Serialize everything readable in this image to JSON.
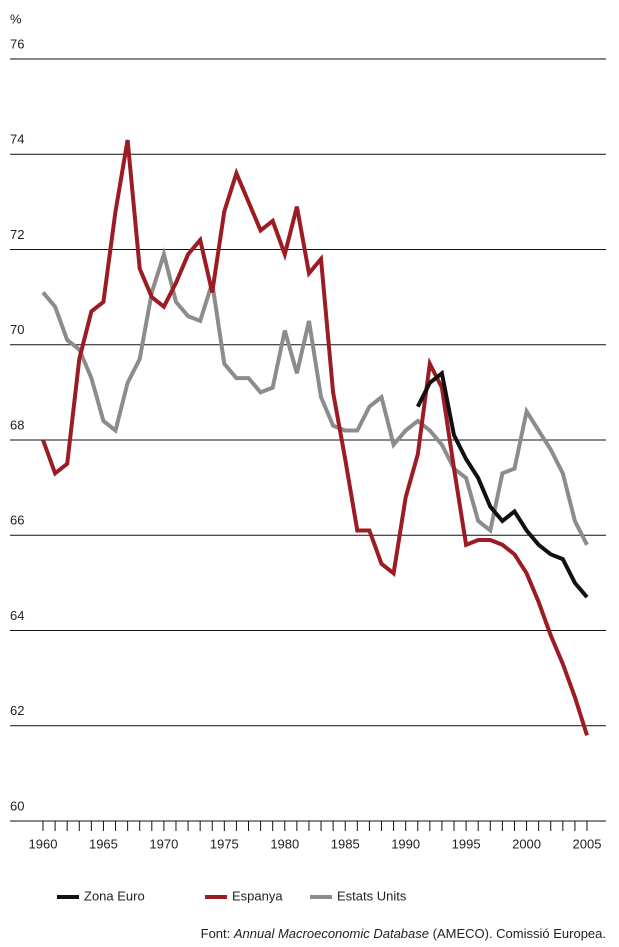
{
  "chart_data": {
    "type": "line",
    "y_label": "%",
    "x": [
      1960,
      1961,
      1962,
      1963,
      1964,
      1965,
      1966,
      1967,
      1968,
      1969,
      1970,
      1971,
      1972,
      1973,
      1974,
      1975,
      1976,
      1977,
      1978,
      1979,
      1980,
      1981,
      1982,
      1983,
      1984,
      1985,
      1986,
      1987,
      1988,
      1989,
      1990,
      1991,
      1992,
      1993,
      1994,
      1995,
      1996,
      1997,
      1998,
      1999,
      2000,
      2001,
      2002,
      2003,
      2004,
      2005
    ],
    "series": [
      {
        "name": "Zona Euro",
        "color": "#111111",
        "values": [
          null,
          null,
          null,
          null,
          null,
          null,
          null,
          null,
          null,
          null,
          null,
          null,
          null,
          null,
          null,
          null,
          null,
          null,
          null,
          null,
          null,
          null,
          null,
          null,
          null,
          null,
          null,
          null,
          null,
          null,
          null,
          68.7,
          69.2,
          69.4,
          68.1,
          67.6,
          67.2,
          66.6,
          66.3,
          66.5,
          66.1,
          65.8,
          65.6,
          65.5,
          65.0,
          64.7
        ]
      },
      {
        "name": "Espanya",
        "color": "#9b1c22",
        "values": [
          68.0,
          67.3,
          67.5,
          69.7,
          70.7,
          70.9,
          72.8,
          74.3,
          71.6,
          71.0,
          70.8,
          71.3,
          71.9,
          72.2,
          71.1,
          72.8,
          73.6,
          73.0,
          72.4,
          72.6,
          71.9,
          72.9,
          71.5,
          71.8,
          69.0,
          67.6,
          66.1,
          66.1,
          65.4,
          65.2,
          66.8,
          67.7,
          69.6,
          69.1,
          67.4,
          65.8,
          65.9,
          65.9,
          65.8,
          65.6,
          65.2,
          64.6,
          63.9,
          63.3,
          62.6,
          61.8
        ]
      },
      {
        "name": "Estats Units",
        "color": "#8c8c8c",
        "values": [
          71.1,
          70.8,
          70.1,
          69.9,
          69.3,
          68.4,
          68.2,
          69.2,
          69.7,
          71.1,
          71.9,
          70.9,
          70.6,
          70.5,
          71.3,
          69.6,
          69.3,
          69.3,
          69.0,
          69.1,
          70.3,
          69.4,
          70.5,
          68.9,
          68.3,
          68.2,
          68.2,
          68.7,
          68.9,
          67.9,
          68.2,
          68.4,
          68.2,
          67.9,
          67.4,
          67.2,
          66.3,
          66.1,
          67.3,
          67.4,
          68.6,
          68.2,
          67.8,
          67.3,
          66.3,
          65.8
        ]
      }
    ],
    "xlim": [
      1960,
      2005
    ],
    "xticks": [
      1960,
      1965,
      1970,
      1975,
      1980,
      1985,
      1990,
      1995,
      2000,
      2005
    ],
    "xminorticks": [
      1960,
      1961,
      1962,
      1963,
      1964,
      1965,
      1966,
      1967,
      1968,
      1969,
      1970,
      1971,
      1972,
      1973,
      1974,
      1975,
      1976,
      1977,
      1978,
      1979,
      1980,
      1981,
      1982,
      1983,
      1984,
      1985,
      1986,
      1987,
      1988,
      1989,
      1990,
      1991,
      1992,
      1993,
      1994,
      1995,
      1996,
      1997,
      1998,
      1999,
      2000,
      2001,
      2002,
      2003,
      2004,
      2005
    ],
    "ylim": [
      60,
      76
    ],
    "yticks": [
      60,
      62,
      64,
      66,
      68,
      70,
      72,
      74,
      76
    ],
    "grid": true,
    "source": {
      "prefix": "Font:",
      "title": "Annual Macroeconomic Database",
      "suffix": "(AMECO). Comissió Europea."
    }
  }
}
